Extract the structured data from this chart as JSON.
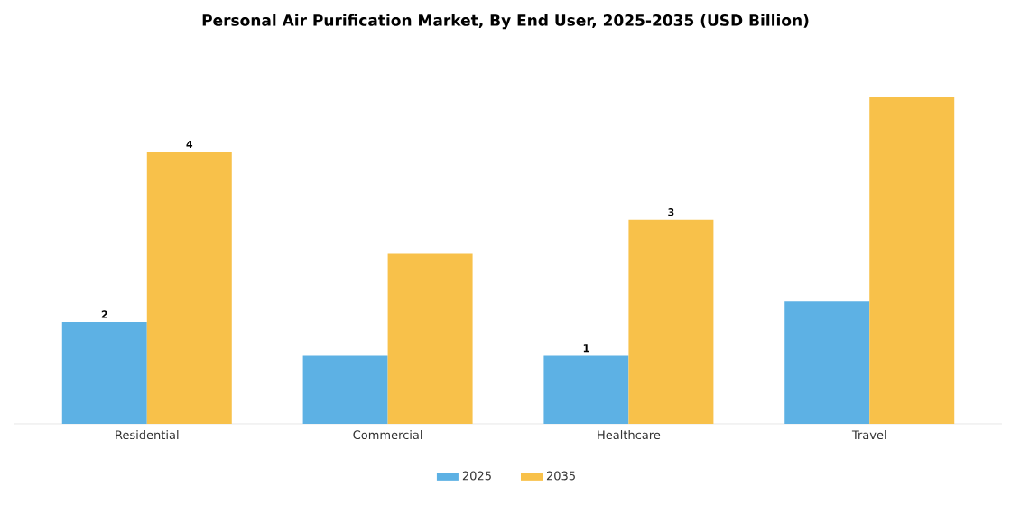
{
  "chart_data": {
    "type": "bar",
    "title": "Personal Air Purification Market, By End User, 2025-2035 (USD Billion)",
    "categories": [
      "Residential",
      "Commercial",
      "Healthcare",
      "Travel"
    ],
    "series": [
      {
        "name": "2025",
        "color": "#5db1e4",
        "values": [
          1.5,
          1.0,
          1.0,
          1.8
        ],
        "value_labels": [
          "2",
          null,
          "1",
          null
        ]
      },
      {
        "name": "2035",
        "color": "#f8c14a",
        "values": [
          4.0,
          2.5,
          3.0,
          4.8
        ],
        "value_labels": [
          "4",
          null,
          "3",
          null
        ]
      }
    ],
    "legend": "bottom",
    "tick_labels": "x"
  }
}
